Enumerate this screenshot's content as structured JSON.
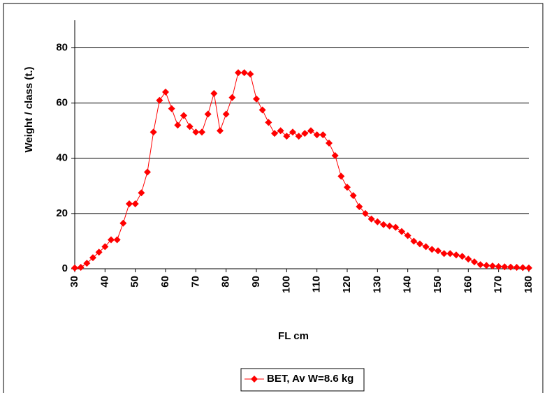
{
  "chart_data": {
    "type": "line",
    "x_label": "FL cm",
    "y_label": "Weight / class (t.)",
    "x": [
      30,
      32,
      34,
      36,
      38,
      40,
      42,
      44,
      46,
      48,
      50,
      52,
      54,
      56,
      58,
      60,
      62,
      64,
      66,
      68,
      70,
      72,
      74,
      76,
      78,
      80,
      82,
      84,
      86,
      88,
      90,
      92,
      94,
      96,
      98,
      100,
      102,
      104,
      106,
      108,
      110,
      112,
      114,
      116,
      118,
      120,
      122,
      124,
      126,
      128,
      130,
      132,
      134,
      136,
      138,
      140,
      142,
      144,
      146,
      148,
      150,
      152,
      154,
      156,
      158,
      160,
      162,
      164,
      166,
      168,
      170,
      172,
      174,
      176,
      178,
      180
    ],
    "series": [
      {
        "name": "BET, Av W=8.6 kg",
        "color": "#ff0000",
        "values": [
          0.3,
          0.5,
          2,
          4,
          6,
          8,
          10.5,
          10.5,
          16.5,
          23.5,
          23.5,
          27.5,
          35,
          49.5,
          61,
          64,
          58,
          52,
          55.5,
          51.5,
          49.5,
          49.5,
          56,
          63.5,
          50,
          56,
          62,
          71,
          71,
          70.5,
          61.5,
          57.5,
          53,
          49,
          50,
          48,
          49.5,
          48,
          49,
          50,
          48.5,
          48.5,
          45.5,
          41,
          33.5,
          29.5,
          26.5,
          22.5,
          20,
          18,
          17,
          16,
          15.5,
          15,
          13.5,
          12,
          10,
          9,
          8,
          7,
          6.5,
          5.5,
          5.5,
          5,
          4.5,
          3.5,
          2.5,
          1.5,
          1.2,
          1,
          0.8,
          0.7,
          0.6,
          0.5,
          0.4,
          0.3
        ]
      }
    ],
    "xlim": [
      30,
      180
    ],
    "xticks": [
      30,
      40,
      50,
      60,
      70,
      80,
      90,
      100,
      110,
      120,
      130,
      140,
      150,
      160,
      170,
      180
    ],
    "ylim": [
      0,
      90
    ],
    "yticks": [
      0,
      20,
      40,
      60,
      80
    ],
    "grid": true
  }
}
